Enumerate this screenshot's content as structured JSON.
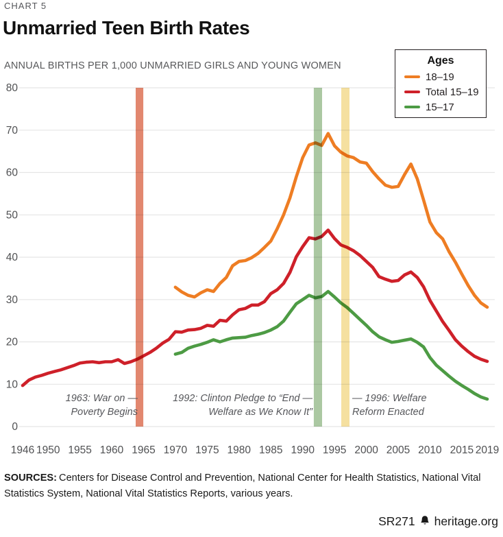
{
  "chart_label": "CHART 5",
  "title": "Unmarried Teen Birth Rates",
  "subtitle": "ANNUAL BIRTHS PER 1,000 UNMARRIED GIRLS AND YOUNG WOMEN",
  "legend": {
    "title": "Ages",
    "items": [
      {
        "label": "18–19",
        "color": "#EE7D23"
      },
      {
        "label": "Total 15–19",
        "color": "#CE2029"
      },
      {
        "label": "15–17",
        "color": "#4D9B44"
      }
    ]
  },
  "chart_data": {
    "type": "line",
    "title": "Unmarried Teen Birth Rates",
    "ylabel": "Annual births per 1,000 unmarried girls and young women",
    "ylim": [
      0,
      80
    ],
    "yticks": [
      0,
      10,
      20,
      30,
      40,
      50,
      60,
      70,
      80
    ],
    "xticks": [
      1946,
      1950,
      1955,
      1960,
      1965,
      1970,
      1975,
      1980,
      1985,
      1990,
      1995,
      2000,
      2005,
      2010,
      2015,
      2019
    ],
    "grid": true,
    "legend_position": "top-right",
    "series": [
      {
        "name": "18–19",
        "color": "#EE7D23",
        "start_year": 1970,
        "values": [
          32.9,
          31.8,
          31.0,
          30.6,
          31.6,
          32.3,
          31.9,
          33.8,
          35.2,
          38.0,
          39.0,
          39.2,
          39.9,
          40.9,
          42.3,
          43.8,
          46.7,
          50.0,
          54.0,
          59.0,
          63.5,
          66.5,
          67.0,
          66.4,
          69.2,
          66.3,
          64.8,
          63.9,
          63.5,
          62.5,
          62.2,
          60.2,
          58.5,
          57.0,
          56.5,
          56.7,
          59.5,
          62.0,
          58.5,
          53.5,
          48.3,
          45.8,
          44.3,
          41.3,
          38.8,
          36.0,
          33.3,
          31.0,
          29.2,
          28.2
        ]
      },
      {
        "name": "Total 15–19",
        "color": "#CE2029",
        "start_year": 1946,
        "values": [
          9.7,
          11.0,
          11.7,
          12.1,
          12.6,
          13.0,
          13.4,
          13.9,
          14.4,
          15.0,
          15.2,
          15.3,
          15.1,
          15.3,
          15.3,
          15.8,
          14.9,
          15.3,
          15.9,
          16.7,
          17.5,
          18.5,
          19.7,
          20.6,
          22.4,
          22.3,
          22.8,
          22.9,
          23.2,
          23.9,
          23.7,
          25.1,
          24.9,
          26.4,
          27.6,
          27.9,
          28.7,
          28.7,
          29.5,
          31.4,
          32.3,
          33.8,
          36.4,
          40.1,
          42.5,
          44.6,
          44.3,
          44.9,
          46.4,
          44.4,
          42.9,
          42.3,
          41.5,
          40.4,
          39.0,
          37.6,
          35.4,
          34.8,
          34.3,
          34.5,
          35.8,
          36.5,
          35.2,
          33.0,
          29.8,
          27.3,
          24.8,
          22.7,
          20.5,
          19.0,
          17.7,
          16.6,
          15.9,
          15.4
        ]
      },
      {
        "name": "15–17",
        "color": "#4D9B44",
        "start_year": 1970,
        "values": [
          17.1,
          17.5,
          18.5,
          19.0,
          19.4,
          19.9,
          20.5,
          20.0,
          20.5,
          20.9,
          21.0,
          21.1,
          21.5,
          21.8,
          22.2,
          22.8,
          23.6,
          24.9,
          27.0,
          29.0,
          30.0,
          31.0,
          30.4,
          30.7,
          31.9,
          30.6,
          29.2,
          28.1,
          26.7,
          25.3,
          23.9,
          22.4,
          21.2,
          20.5,
          19.9,
          20.1,
          20.4,
          20.7,
          19.9,
          18.8,
          16.3,
          14.5,
          13.2,
          11.9,
          10.7,
          9.7,
          8.8,
          7.8,
          7.0,
          6.5
        ]
      }
    ],
    "bands": [
      {
        "year": "1963",
        "from": 1963.76,
        "to": 1964.95,
        "color": "#E2876F"
      },
      {
        "year": "1992",
        "from": 1991.75,
        "to": 1993.05,
        "color": "#ABC8A2"
      },
      {
        "year": "1996",
        "from": 1996.06,
        "to": 1997.35,
        "color": "#F5E0A0"
      }
    ],
    "annotations": [
      {
        "line1": "1963: War on —",
        "line2": "Poverty Begins"
      },
      {
        "line1": "1992: Clinton Pledge to “End —",
        "line2": "Welfare as We Know It”"
      },
      {
        "line1": "— 1996: Welfare",
        "line2": "Reform Enacted"
      }
    ]
  },
  "sources": {
    "label": "SOURCES:",
    "text": "Centers for Disease Control and Prevention, National Center for Health Statistics, National Vital Statistics System, National Vital Statistics Reports, various years."
  },
  "footer": {
    "report": "SR271",
    "site": "heritage.org"
  }
}
